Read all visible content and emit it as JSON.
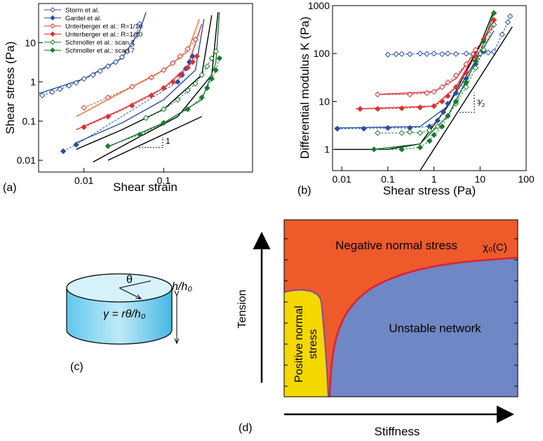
{
  "chart_data": [
    {
      "type": "scatter",
      "panel_label": "(a)",
      "x_label": "Shear strain",
      "y_label": "Shear stress (Pa)",
      "xscale": "log",
      "yscale": "log",
      "xlim": [
        0.0027,
        1.3
      ],
      "ylim": [
        0.005,
        100
      ],
      "xticks": [
        0.01,
        0.1
      ],
      "yticks": [
        0.01,
        0.1,
        1,
        10
      ],
      "legend": "upper left",
      "slope_label": "1",
      "series": [
        {
          "name": "Storm et al.",
          "color": "#2b4ea2",
          "filled": false,
          "x": [
            0.003,
            0.004,
            0.005,
            0.0065,
            0.008,
            0.01,
            0.013,
            0.016,
            0.02,
            0.025,
            0.03,
            0.035,
            0.04,
            0.045,
            0.05
          ],
          "values": [
            0.45,
            0.55,
            0.65,
            0.8,
            0.95,
            1.2,
            1.5,
            1.9,
            2.5,
            3.2,
            4.3,
            6,
            9,
            15,
            30
          ]
        },
        {
          "name": "Gardel et al.",
          "color": "#2b4ea2",
          "filled": true,
          "x": [
            0.0055,
            0.008,
            0.15,
            0.17,
            0.19,
            0.21,
            0.23
          ],
          "values": [
            0.017,
            0.025,
            1.0,
            1.5,
            2.2,
            3.2,
            4.5
          ]
        },
        {
          "name": "Unterberger et al.: R=1/10",
          "color": "#e03030",
          "filled": false,
          "x": [
            0.01,
            0.02,
            0.04,
            0.07,
            0.1,
            0.13,
            0.16,
            0.2,
            0.25
          ],
          "values": [
            0.22,
            0.4,
            0.75,
            1.3,
            2,
            3,
            4.5,
            7,
            12
          ]
        },
        {
          "name": "Unterberger et al.: R=1/20",
          "color": "#e03030",
          "filled": true,
          "x": [
            0.01,
            0.02,
            0.04,
            0.07,
            0.1,
            0.13,
            0.16,
            0.2,
            0.23,
            0.26
          ],
          "values": [
            0.07,
            0.13,
            0.25,
            0.45,
            0.7,
            1,
            1.5,
            2.3,
            3.2,
            4.5
          ]
        },
        {
          "name": "Schmoller et al.: scan 2",
          "color": "#1a7a30",
          "filled": false,
          "x": [
            0.06,
            0.1,
            0.15,
            0.2,
            0.25,
            0.3,
            0.35,
            0.4,
            0.45
          ],
          "values": [
            0.12,
            0.2,
            0.35,
            0.6,
            0.9,
            1.5,
            2.5,
            4,
            6
          ]
        },
        {
          "name": "Schmoller et al.: scan 7",
          "color": "#1a7a30",
          "filled": true,
          "x": [
            0.02,
            0.05,
            0.1,
            0.2,
            0.3,
            0.35,
            0.4,
            0.45,
            0.5
          ],
          "values": [
            0.023,
            0.045,
            0.09,
            0.2,
            0.4,
            0.7,
            1.2,
            2,
            4
          ]
        }
      ],
      "fits": [
        {
          "color": "#2b4ea2",
          "x": [
            0.0027,
            0.01,
            0.03,
            0.05,
            0.06
          ],
          "values": [
            0.5,
            1.2,
            4,
            20,
            60
          ]
        },
        {
          "color": "#f07020",
          "x": [
            0.008,
            0.03,
            0.1,
            0.2,
            0.28
          ],
          "values": [
            0.13,
            0.55,
            2,
            6,
            40
          ]
        },
        {
          "color": "#e03030",
          "x": [
            0.008,
            0.03,
            0.1,
            0.2,
            0.3
          ],
          "values": [
            0.06,
            0.2,
            0.7,
            2.5,
            30
          ]
        },
        {
          "color": "#2b4ea2",
          "x": [
            0.008,
            0.03,
            0.1,
            0.25,
            0.32
          ],
          "values": [
            0.028,
            0.09,
            0.35,
            2,
            40
          ]
        },
        {
          "color": "#000000",
          "x": [
            0.008,
            0.03,
            0.1,
            0.3,
            0.4
          ],
          "values": [
            0.019,
            0.06,
            0.2,
            1.5,
            50
          ]
        },
        {
          "color": "#000000",
          "x": [
            0.013,
            0.05,
            0.15,
            0.4,
            0.48
          ],
          "values": [
            0.009,
            0.04,
            0.13,
            1.5,
            60
          ]
        },
        {
          "color": "#1a7a30",
          "x": [
            0.02,
            0.1,
            0.3,
            0.45,
            0.5
          ],
          "values": [
            0.022,
            0.09,
            0.35,
            3,
            60
          ]
        },
        {
          "color": "#000000",
          "x": [
            0.02,
            0.3
          ],
          "values": [
            0.01,
            0.13
          ]
        }
      ]
    },
    {
      "type": "scatter",
      "panel_label": "(b)",
      "x_label": "Shear stress (Pa)",
      "y_label": "Differential modulus K (Pa)",
      "xscale": "log",
      "yscale": "log",
      "xlim": [
        0.0063,
        100
      ],
      "ylim": [
        0.36,
        1000
      ],
      "xticks": [
        0.01,
        0.1,
        1,
        10,
        100
      ],
      "yticks": [
        1,
        10,
        100,
        1000
      ],
      "slope_label": "³⁄₂",
      "series": [
        {
          "color": "#2b4ea2",
          "filled": false,
          "x": [
            0.1,
            0.15,
            0.2,
            0.3,
            0.5,
            0.7,
            1,
            1.5,
            2,
            3,
            5,
            7,
            10,
            15,
            20,
            30,
            40,
            45
          ],
          "values": [
            95,
            97,
            98,
            97,
            100,
            98,
            100,
            97,
            100,
            98,
            100,
            97,
            100,
            105,
            110,
            250,
            450,
            600
          ]
        },
        {
          "color": "#2b4ea2",
          "filled": true,
          "x": [
            0.008,
            0.03,
            0.1,
            0.3,
            0.8,
            1.2,
            1.6,
            2,
            3,
            5,
            8,
            12
          ],
          "values": [
            2.7,
            2.7,
            2.8,
            2.8,
            3,
            4,
            6,
            9,
            15,
            30,
            60,
            110
          ]
        },
        {
          "color": "#e03030",
          "filled": false,
          "x": [
            0.06,
            0.3,
            0.7,
            1,
            1.5,
            2,
            3,
            5,
            8,
            12,
            20
          ],
          "values": [
            14,
            14,
            15,
            16,
            20,
            25,
            35,
            60,
            120,
            200,
            400
          ]
        },
        {
          "color": "#e03030",
          "filled": true,
          "x": [
            0.025,
            0.06,
            0.2,
            0.5,
            1,
            1.5,
            2,
            3,
            5,
            8,
            12,
            20
          ],
          "values": [
            7,
            7,
            7.2,
            7.5,
            8,
            10,
            13,
            20,
            40,
            90,
            200,
            500
          ]
        },
        {
          "color": "#1a7a30",
          "filled": false,
          "x": [
            0.06,
            0.2,
            0.3,
            0.5,
            0.8,
            1.2,
            2,
            3,
            5,
            8,
            12,
            20
          ],
          "values": [
            2.2,
            2.2,
            2.3,
            2.2,
            2.5,
            3,
            5,
            9,
            20,
            50,
            120,
            400
          ]
        },
        {
          "color": "#1a7a30",
          "filled": true,
          "x": [
            0.05,
            0.2,
            0.5,
            0.8,
            1,
            1.5,
            2,
            3,
            5,
            8,
            12,
            20
          ],
          "values": [
            1,
            1,
            1.1,
            1.5,
            2,
            3,
            5,
            10,
            25,
            70,
            180,
            700
          ]
        }
      ],
      "fits": [
        {
          "color": "#000000",
          "x": [
            0.5,
            50
          ],
          "values": [
            0.36,
            360
          ]
        },
        {
          "color": "#2b4ea2",
          "x": [
            0.007,
            0.5,
            2,
            10,
            20
          ],
          "values": [
            2.8,
            3,
            8,
            100,
            300
          ]
        },
        {
          "color": "#e03030",
          "x": [
            0.06,
            1,
            3,
            10,
            20
          ],
          "values": [
            14,
            16,
            30,
            150,
            400
          ]
        },
        {
          "color": "#e03030",
          "x": [
            0.02,
            1,
            3,
            10,
            20
          ],
          "values": [
            7,
            8,
            20,
            150,
            500
          ]
        },
        {
          "color": "#000000",
          "x": [
            0.007,
            0.1,
            0.5,
            2,
            10,
            20
          ],
          "values": [
            1,
            1,
            1.3,
            8,
            150,
            800
          ]
        },
        {
          "color": "#1a7a30",
          "x": [
            0.05,
            0.5,
            2,
            10,
            20
          ],
          "values": [
            1,
            1.3,
            5,
            100,
            700
          ]
        }
      ]
    }
  ],
  "panel_c": {
    "label": "(c)",
    "angle": "θ",
    "height": "h/h₀",
    "strain": "γ = rθ/h₀"
  },
  "panel_d": {
    "label": "(d)",
    "region_negative": "Negative normal stress",
    "boundary": "χ₀(C)",
    "region_positive": [
      "Positive normal",
      "stress"
    ],
    "region_unstable": "Unstable network",
    "y_axis": "Tension",
    "x_axis": "Stiffness"
  }
}
